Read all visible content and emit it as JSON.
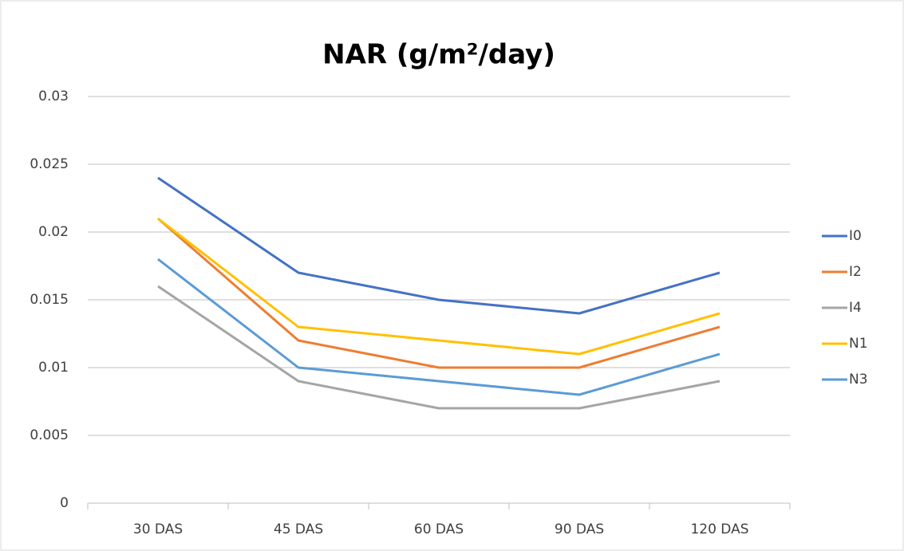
{
  "chart_data": {
    "type": "line",
    "title": "NAR (g/m²/day)",
    "categories": [
      "30 DAS",
      "45 DAS",
      "60 DAS",
      "90 DAS",
      "120 DAS"
    ],
    "series": [
      {
        "name": "I0",
        "color": "#4472c4",
        "values": [
          0.024,
          0.017,
          0.015,
          0.014,
          0.017
        ]
      },
      {
        "name": "I2",
        "color": "#ed7d31",
        "values": [
          0.021,
          0.012,
          0.01,
          0.01,
          0.013
        ]
      },
      {
        "name": "I4",
        "color": "#a5a5a5",
        "values": [
          0.016,
          0.009,
          0.007,
          0.007,
          0.009
        ]
      },
      {
        "name": "N1",
        "color": "#ffc000",
        "values": [
          0.021,
          0.013,
          0.012,
          0.011,
          0.014
        ]
      },
      {
        "name": "N3",
        "color": "#5b9bd5",
        "values": [
          0.018,
          0.01,
          0.009,
          0.008,
          0.011
        ]
      }
    ],
    "ylim": [
      0,
      0.03
    ],
    "yticks": [
      0,
      0.005,
      0.01,
      0.015,
      0.02,
      0.025,
      0.03
    ],
    "grid": true,
    "legend": "right"
  }
}
